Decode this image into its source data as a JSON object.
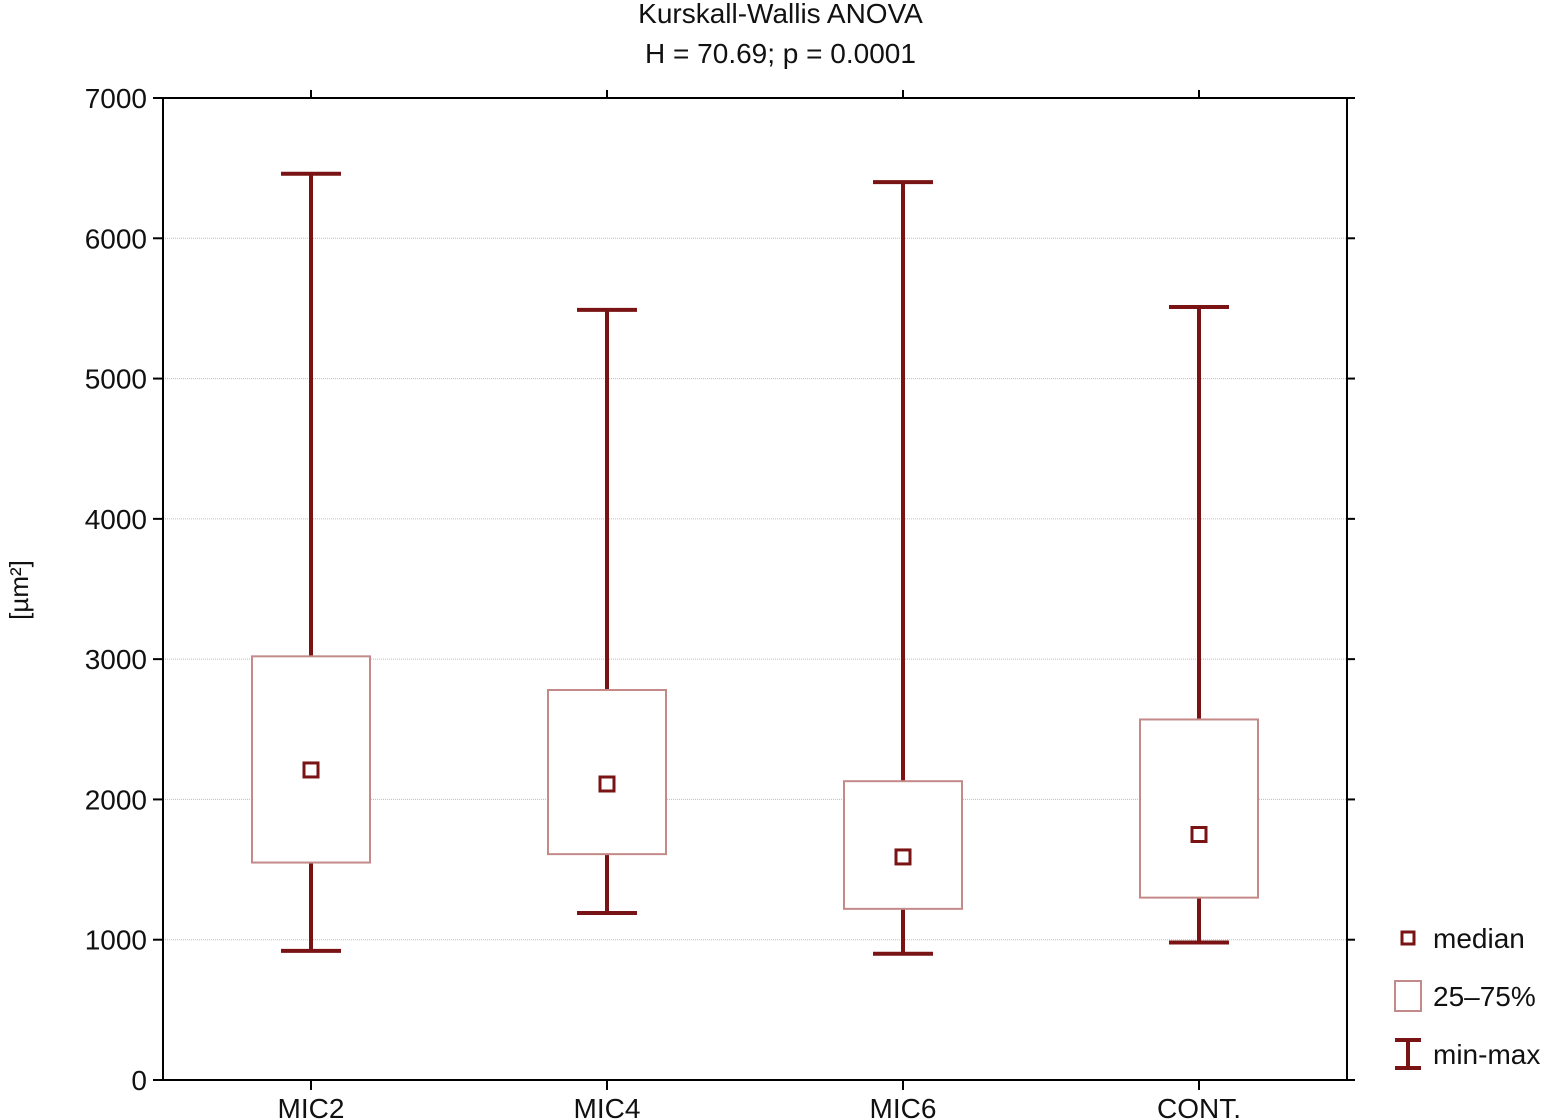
{
  "chart_data": {
    "type": "boxplot",
    "title": "Kurskall-Wallis ANOVA",
    "subtitle": "H = 70.69;  p = 0.0001",
    "ylabel": "[µm²]",
    "xlabel": "",
    "ylim": [
      0,
      7000
    ],
    "yticks": [
      0,
      1000,
      2000,
      3000,
      4000,
      5000,
      6000,
      7000
    ],
    "grid": true,
    "legend_position": "right-bottom",
    "legend": [
      {
        "kind": "median",
        "label": "median"
      },
      {
        "kind": "box",
        "label": "25–75%"
      },
      {
        "kind": "whisker",
        "label": "min-max"
      }
    ],
    "colors": {
      "whisker": "#7a1414",
      "box": "#c48a8a",
      "median": "#7a1414",
      "grid": "#bdbdbd"
    },
    "categories": [
      "MIC2",
      "MIC4",
      "MIC6",
      "CONT."
    ],
    "boxes": [
      {
        "min": 920,
        "q1": 1550,
        "median": 2210,
        "q3": 3020,
        "max": 6460
      },
      {
        "min": 1190,
        "q1": 1610,
        "median": 2110,
        "q3": 2780,
        "max": 5490
      },
      {
        "min": 900,
        "q1": 1220,
        "median": 1590,
        "q3": 2130,
        "max": 6400
      },
      {
        "min": 980,
        "q1": 1300,
        "median": 1750,
        "q3": 2570,
        "max": 5510
      }
    ]
  }
}
